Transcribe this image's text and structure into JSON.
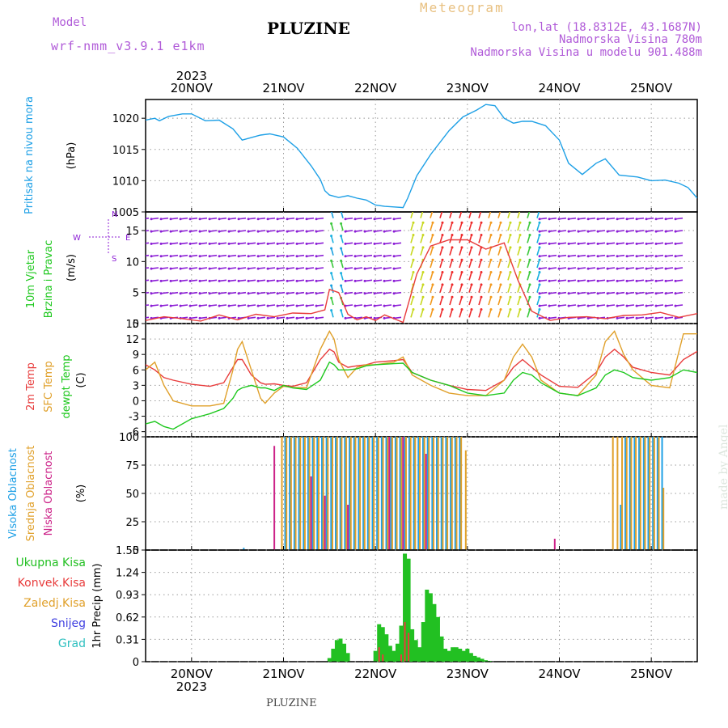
{
  "header": {
    "model_label": "Model",
    "model_name": "wrf-nmm_v3.9.1  e1km",
    "title": "PLUZINE",
    "chart_kind": "Meteogram",
    "coords": "lon,lat (18.8312E, 43.1687N)",
    "elevation": "Nadmorska Visina 780m",
    "model_elevation": "Nadmorska Visina u modelu 901.488m",
    "footer": "PLUZINE",
    "watermark": "made by Angel"
  },
  "colors": {
    "pressure": "#1ea0e6",
    "temp2m": "#e83c3c",
    "sfc": "#e0a02a",
    "dew": "#1ec81e",
    "high_cloud": "#1ea0e6",
    "mid_cloud": "#e0a02a",
    "low_cloud": "#cc2288",
    "total_precip": "#22c022",
    "conv_precip": "#e83c3c",
    "wind_purple": "#8c1ed6",
    "grid": "#999999"
  },
  "chart_data": {
    "type": "line",
    "x_dates": [
      "20NOV",
      "21NOV",
      "22NOV",
      "23NOV",
      "24NOV",
      "25NOV"
    ],
    "year": "2023",
    "x_unit": "day offset from 20NOV 00UTC",
    "xlim": [
      -0.5,
      5.5
    ],
    "panels": [
      {
        "id": "pressure",
        "labels": [
          "Pritisak na nivou mora"
        ],
        "unit": "(hPa)",
        "ylim": [
          1005,
          1023
        ],
        "yticks": [
          1005,
          1010,
          1015,
          1020
        ],
        "x": [
          -0.5,
          -0.4,
          -0.35,
          -0.25,
          -0.1,
          0,
          0.15,
          0.3,
          0.45,
          0.55,
          0.65,
          0.75,
          0.85,
          1.0,
          1.15,
          1.3,
          1.4,
          1.45,
          1.5,
          1.6,
          1.7,
          1.8,
          1.9,
          2.0,
          2.1,
          2.2,
          2.3,
          2.35,
          2.45,
          2.6,
          2.8,
          2.95,
          3.1,
          3.2,
          3.3,
          3.4,
          3.5,
          3.6,
          3.7,
          3.85,
          4.0,
          4.1,
          4.25,
          4.4,
          4.5,
          4.65,
          4.85,
          5.0,
          5.15,
          5.3,
          5.4,
          5.5
        ],
        "series": [
          {
            "name": "",
            "color_key": "pressure",
            "values": [
              1019.7,
              1020.0,
              1019.6,
              1020.3,
              1020.7,
              1020.7,
              1019.6,
              1019.7,
              1018.3,
              1016.5,
              1016.9,
              1017.3,
              1017.5,
              1017.0,
              1015.2,
              1012.4,
              1010.2,
              1008.4,
              1007.7,
              1007.3,
              1007.6,
              1007.2,
              1006.9,
              1006.1,
              1005.9,
              1005.8,
              1005.7,
              1007.2,
              1010.8,
              1014.2,
              1018.0,
              1020.2,
              1021.3,
              1022.2,
              1022.0,
              1020.0,
              1019.2,
              1019.5,
              1019.5,
              1018.8,
              1016.5,
              1012.8,
              1011.0,
              1012.8,
              1013.5,
              1010.9,
              1010.6,
              1010.0,
              1010.1,
              1009.6,
              1008.9,
              1007.2
            ]
          }
        ]
      },
      {
        "id": "wind",
        "labels": [
          "10m Vjetar",
          "Brzina i Pravac"
        ],
        "unit": "(m/s)",
        "ylim": [
          0,
          18
        ],
        "yticks": [
          0,
          5,
          10,
          15
        ],
        "compass": [
          "N",
          "E",
          "S",
          "W"
        ],
        "x": [
          -0.5,
          -0.3,
          -0.1,
          0.1,
          0.3,
          0.5,
          0.7,
          0.9,
          1.1,
          1.3,
          1.45,
          1.5,
          1.6,
          1.7,
          1.8,
          1.9,
          2.0,
          2.1,
          2.2,
          2.3,
          2.45,
          2.6,
          2.8,
          3.0,
          3.2,
          3.4,
          3.55,
          3.7,
          3.9,
          4.1,
          4.3,
          4.5,
          4.7,
          4.9,
          5.1,
          5.3,
          5.5
        ],
        "series": [
          {
            "name": "",
            "color_key": "temp2m",
            "values": [
              0.5,
              1.1,
              0.8,
              0.4,
              1.4,
              0.6,
              1.5,
              1.1,
              1.7,
              1.6,
              2.2,
              5.5,
              5.0,
              1.5,
              0.6,
              1.1,
              0.5,
              1.4,
              0.8,
              0.2,
              8.0,
              12.5,
              13.5,
              13.5,
              12.0,
              13.0,
              7.0,
              2.0,
              0.5,
              1.0,
              1.1,
              0.8,
              1.3,
              1.4,
              1.8,
              1.0,
              1.6
            ]
          }
        ]
      },
      {
        "id": "temperature",
        "labels": [
          "2m Temp",
          "SFC Temp",
          "dewpt Temp"
        ],
        "unit": "(C)",
        "ylim": [
          -7,
          15
        ],
        "yticks": [
          -6,
          -3,
          0,
          3,
          6,
          9,
          12,
          15
        ],
        "x": [
          -0.5,
          -0.4,
          -0.3,
          -0.2,
          0,
          0.2,
          0.35,
          0.45,
          0.5,
          0.55,
          0.65,
          0.75,
          0.8,
          0.9,
          1.0,
          1.1,
          1.25,
          1.4,
          1.5,
          1.55,
          1.6,
          1.7,
          1.8,
          1.9,
          2.0,
          2.2,
          2.3,
          2.4,
          2.6,
          2.8,
          3.0,
          3.2,
          3.4,
          3.5,
          3.6,
          3.7,
          3.8,
          4.0,
          4.2,
          4.4,
          4.5,
          4.6,
          4.7,
          4.8,
          5.0,
          5.2,
          5.35,
          5.5
        ],
        "series": [
          {
            "name": "2m Temp",
            "color_key": "temp2m",
            "values": [
              7.0,
              6.0,
              4.5,
              4.0,
              3.2,
              2.8,
              3.5,
              6.5,
              8.0,
              8.0,
              5.0,
              3.5,
              3.2,
              3.3,
              3.0,
              2.8,
              3.5,
              8.0,
              10.0,
              9.5,
              7.5,
              6.5,
              6.8,
              7.0,
              7.5,
              7.8,
              8.0,
              5.5,
              4.0,
              3.0,
              2.2,
              2.0,
              4.0,
              6.5,
              8.0,
              6.5,
              5.0,
              2.8,
              2.6,
              5.5,
              8.5,
              10.0,
              8.5,
              6.5,
              5.5,
              5.0,
              8.0,
              9.6
            ]
          },
          {
            "name": "SFC Temp",
            "color_key": "sfc",
            "values": [
              6.0,
              7.5,
              3.0,
              0.0,
              -1.0,
              -1.0,
              -0.5,
              6.0,
              10.0,
              11.5,
              6.0,
              0.5,
              -0.5,
              1.5,
              2.8,
              2.6,
              2.5,
              10.0,
              13.5,
              12.0,
              8.0,
              4.5,
              6.5,
              7.0,
              7.0,
              7.5,
              8.5,
              5.0,
              3.0,
              1.5,
              1.0,
              1.0,
              4.0,
              8.5,
              11.0,
              8.5,
              4.0,
              1.5,
              1.0,
              5.0,
              11.5,
              13.5,
              9.0,
              6.0,
              3.0,
              2.5,
              13.0,
              13.0
            ]
          },
          {
            "name": "dewpt Temp",
            "color_key": "dew",
            "values": [
              -4.5,
              -4.0,
              -5.0,
              -5.5,
              -3.5,
              -2.5,
              -1.5,
              0.5,
              2.0,
              2.5,
              3.0,
              2.5,
              2.5,
              2.0,
              3.0,
              2.5,
              2.2,
              4.0,
              7.5,
              7.0,
              6.0,
              6.0,
              6.2,
              6.8,
              7.0,
              7.2,
              7.3,
              5.5,
              4.0,
              3.0,
              1.5,
              1.0,
              1.5,
              4.0,
              5.5,
              5.0,
              3.5,
              1.5,
              1.0,
              2.5,
              5.0,
              6.0,
              5.5,
              4.5,
              4.0,
              4.5,
              6.0,
              5.5
            ]
          }
        ]
      },
      {
        "id": "clouds",
        "labels": [
          "Visoka Oblacnost",
          "Srednja Oblacnost",
          "Niska Oblacnost"
        ],
        "unit": "(%)",
        "ylim": [
          0,
          100
        ],
        "yticks": [
          0,
          25,
          50,
          75,
          100
        ],
        "x": [
          0.55,
          0.9,
          1.0,
          1.05,
          1.1,
          1.15,
          1.2,
          1.25,
          1.3,
          1.35,
          1.4,
          1.45,
          1.5,
          1.55,
          1.6,
          1.65,
          1.7,
          1.75,
          1.8,
          1.85,
          1.9,
          1.95,
          2.0,
          2.05,
          2.1,
          2.15,
          2.2,
          2.25,
          2.3,
          2.35,
          2.4,
          2.45,
          2.5,
          2.55,
          2.6,
          2.65,
          2.7,
          2.75,
          2.8,
          2.85,
          2.9,
          2.95,
          3.0,
          3.95,
          4.6,
          4.65,
          4.7,
          4.75,
          4.8,
          4.85,
          4.9,
          4.95,
          5.0,
          5.05,
          5.1,
          5.15,
          5.5
        ],
        "series": [
          {
            "name": "Visoka Oblacnost",
            "color_key": "high_cloud",
            "values": [
              2,
              0,
              100,
              100,
              100,
              100,
              100,
              100,
              100,
              100,
              100,
              100,
              100,
              100,
              100,
              100,
              100,
              100,
              100,
              100,
              100,
              100,
              100,
              100,
              100,
              100,
              100,
              100,
              100,
              100,
              100,
              100,
              100,
              100,
              100,
              100,
              100,
              100,
              100,
              100,
              100,
              0,
              0,
              0,
              0,
              40,
              100,
              100,
              100,
              100,
              100,
              100,
              100,
              100,
              100,
              0,
              10
            ]
          },
          {
            "name": "Srednja Oblacnost",
            "color_key": "mid_cloud",
            "values": [
              0,
              0,
              100,
              100,
              100,
              100,
              100,
              100,
              100,
              100,
              100,
              100,
              100,
              100,
              100,
              100,
              100,
              100,
              100,
              100,
              100,
              100,
              100,
              100,
              100,
              100,
              100,
              100,
              100,
              100,
              100,
              100,
              100,
              100,
              100,
              100,
              100,
              100,
              100,
              100,
              100,
              100,
              88,
              0,
              100,
              100,
              100,
              100,
              100,
              100,
              100,
              100,
              100,
              100,
              100,
              55,
              0
            ]
          },
          {
            "name": "Niska Oblacnost",
            "color_key": "low_cloud",
            "values": [
              0,
              92,
              0,
              0,
              0,
              0,
              0,
              0,
              65,
              0,
              0,
              48,
              0,
              0,
              0,
              0,
              40,
              0,
              0,
              0,
              0,
              0,
              0,
              0,
              0,
              100,
              0,
              0,
              100,
              0,
              0,
              0,
              0,
              85,
              0,
              0,
              0,
              0,
              0,
              0,
              0,
              0,
              0,
              10,
              0,
              0,
              0,
              0,
              0,
              0,
              0,
              0,
              0,
              0,
              0,
              0,
              0
            ]
          }
        ]
      },
      {
        "id": "precip",
        "labels": [
          "Ukupna Kisa",
          "Konvek.Kisa",
          "Zaledj.Kisa",
          "Snijeg",
          "Grad"
        ],
        "label_color_keys": [
          "total_precip",
          "conv_precip",
          "sfc",
          "snow",
          "hail"
        ],
        "unit": "1hr Precip (mm)",
        "ylim": [
          0,
          1.55
        ],
        "yticks": [
          0,
          0.31,
          0.62,
          0.93,
          1.24,
          1.55
        ],
        "x": [
          1.5,
          1.54,
          1.58,
          1.62,
          1.66,
          1.7,
          2.0,
          2.04,
          2.08,
          2.12,
          2.16,
          2.2,
          2.24,
          2.28,
          2.32,
          2.36,
          2.4,
          2.44,
          2.48,
          2.52,
          2.56,
          2.6,
          2.64,
          2.68,
          2.72,
          2.76,
          2.8,
          2.84,
          2.88,
          2.92,
          2.96,
          3.0,
          3.04,
          3.08,
          3.12,
          3.16,
          3.2,
          3.24
        ],
        "series": [
          {
            "name": "Ukupna Kisa",
            "color_key": "total_precip",
            "values": [
              0.05,
              0.18,
              0.3,
              0.32,
              0.25,
              0.12,
              0.15,
              0.52,
              0.48,
              0.38,
              0.22,
              0.15,
              0.25,
              0.5,
              1.5,
              1.43,
              0.45,
              0.3,
              0.2,
              0.55,
              1.0,
              0.95,
              0.8,
              0.62,
              0.35,
              0.18,
              0.15,
              0.2,
              0.2,
              0.18,
              0.15,
              0.18,
              0.12,
              0.08,
              0.06,
              0.04,
              0.02,
              0.01
            ]
          },
          {
            "name": "Konvek.Kisa",
            "color_key": "conv_precip",
            "values": [
              0,
              0,
              0,
              0,
              0,
              0,
              0,
              0.2,
              0.1,
              0,
              0,
              0,
              0,
              0.1,
              0.55,
              0.4,
              0,
              0,
              0,
              0,
              0,
              0,
              0,
              0,
              0,
              0,
              0,
              0,
              0,
              0,
              0,
              0,
              0,
              0,
              0,
              0,
              0,
              0
            ]
          }
        ]
      }
    ]
  }
}
